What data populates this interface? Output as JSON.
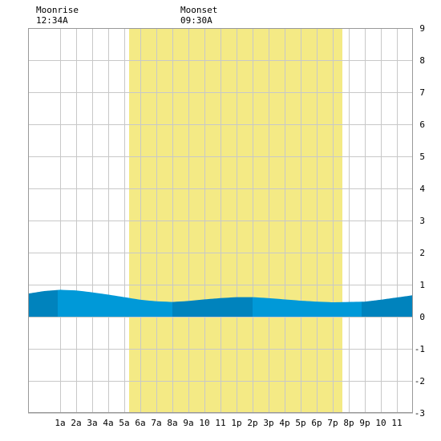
{
  "moon": {
    "rise_label": "Moonrise",
    "rise_time": "12:34A",
    "set_label": "Moonset",
    "set_time": "09:30A"
  },
  "chart_data": {
    "type": "area",
    "title": "",
    "xlabel": "",
    "ylabel": "",
    "x_unit": "hours after midnight",
    "xlim": [
      -1.0,
      23.0
    ],
    "ylim": [
      -3,
      9
    ],
    "grid": true,
    "x_ticks": [
      {
        "x": 1,
        "label": "1a"
      },
      {
        "x": 2,
        "label": "2a"
      },
      {
        "x": 3,
        "label": "3a"
      },
      {
        "x": 4,
        "label": "4a"
      },
      {
        "x": 5,
        "label": "5a"
      },
      {
        "x": 6,
        "label": "6a"
      },
      {
        "x": 7,
        "label": "7a"
      },
      {
        "x": 8,
        "label": "8a"
      },
      {
        "x": 9,
        "label": "9a"
      },
      {
        "x": 10,
        "label": "10"
      },
      {
        "x": 11,
        "label": "11"
      },
      {
        "x": 12,
        "label": "1p"
      },
      {
        "x": 13,
        "label": "2p"
      },
      {
        "x": 14,
        "label": "3p"
      },
      {
        "x": 15,
        "label": "4p"
      },
      {
        "x": 16,
        "label": "5p"
      },
      {
        "x": 17,
        "label": "6p"
      },
      {
        "x": 18,
        "label": "7p"
      },
      {
        "x": 19,
        "label": "8p"
      },
      {
        "x": 20,
        "label": "9p"
      },
      {
        "x": 21,
        "label": "10"
      },
      {
        "x": 22,
        "label": "11"
      }
    ],
    "y_ticks": [
      9,
      8,
      7,
      6,
      5,
      4,
      3,
      2,
      1,
      0,
      -1,
      -2,
      -3
    ],
    "daylight": {
      "start": 5.3,
      "end": 18.6
    },
    "tide_bands": [
      {
        "start": -1.0,
        "end": 0.85,
        "shade": "dark"
      },
      {
        "start": 0.85,
        "end": 8.0,
        "shade": "light"
      },
      {
        "start": 8.0,
        "end": 13.0,
        "shade": "dark"
      },
      {
        "start": 13.0,
        "end": 19.8,
        "shade": "light"
      },
      {
        "start": 19.8,
        "end": 23.0,
        "shade": "dark"
      }
    ],
    "series": [
      {
        "x": [
          -1,
          0,
          1,
          2,
          3,
          4,
          5,
          6,
          7,
          8,
          9,
          10,
          11,
          12,
          13,
          14,
          15,
          16,
          17,
          18,
          19,
          20,
          21,
          22,
          23
        ],
        "values": [
          0.72,
          0.8,
          0.84,
          0.82,
          0.76,
          0.69,
          0.61,
          0.53,
          0.48,
          0.46,
          0.49,
          0.54,
          0.58,
          0.61,
          0.61,
          0.58,
          0.54,
          0.5,
          0.47,
          0.45,
          0.46,
          0.47,
          0.53,
          0.6,
          0.67
        ]
      }
    ],
    "colors": {
      "daylight": "#f4ea85",
      "tide_dark": "#0083bd",
      "tide_light": "#0099d8",
      "grid": "#c8c8c8",
      "frame": "#999999",
      "background": "#ffffff"
    }
  }
}
